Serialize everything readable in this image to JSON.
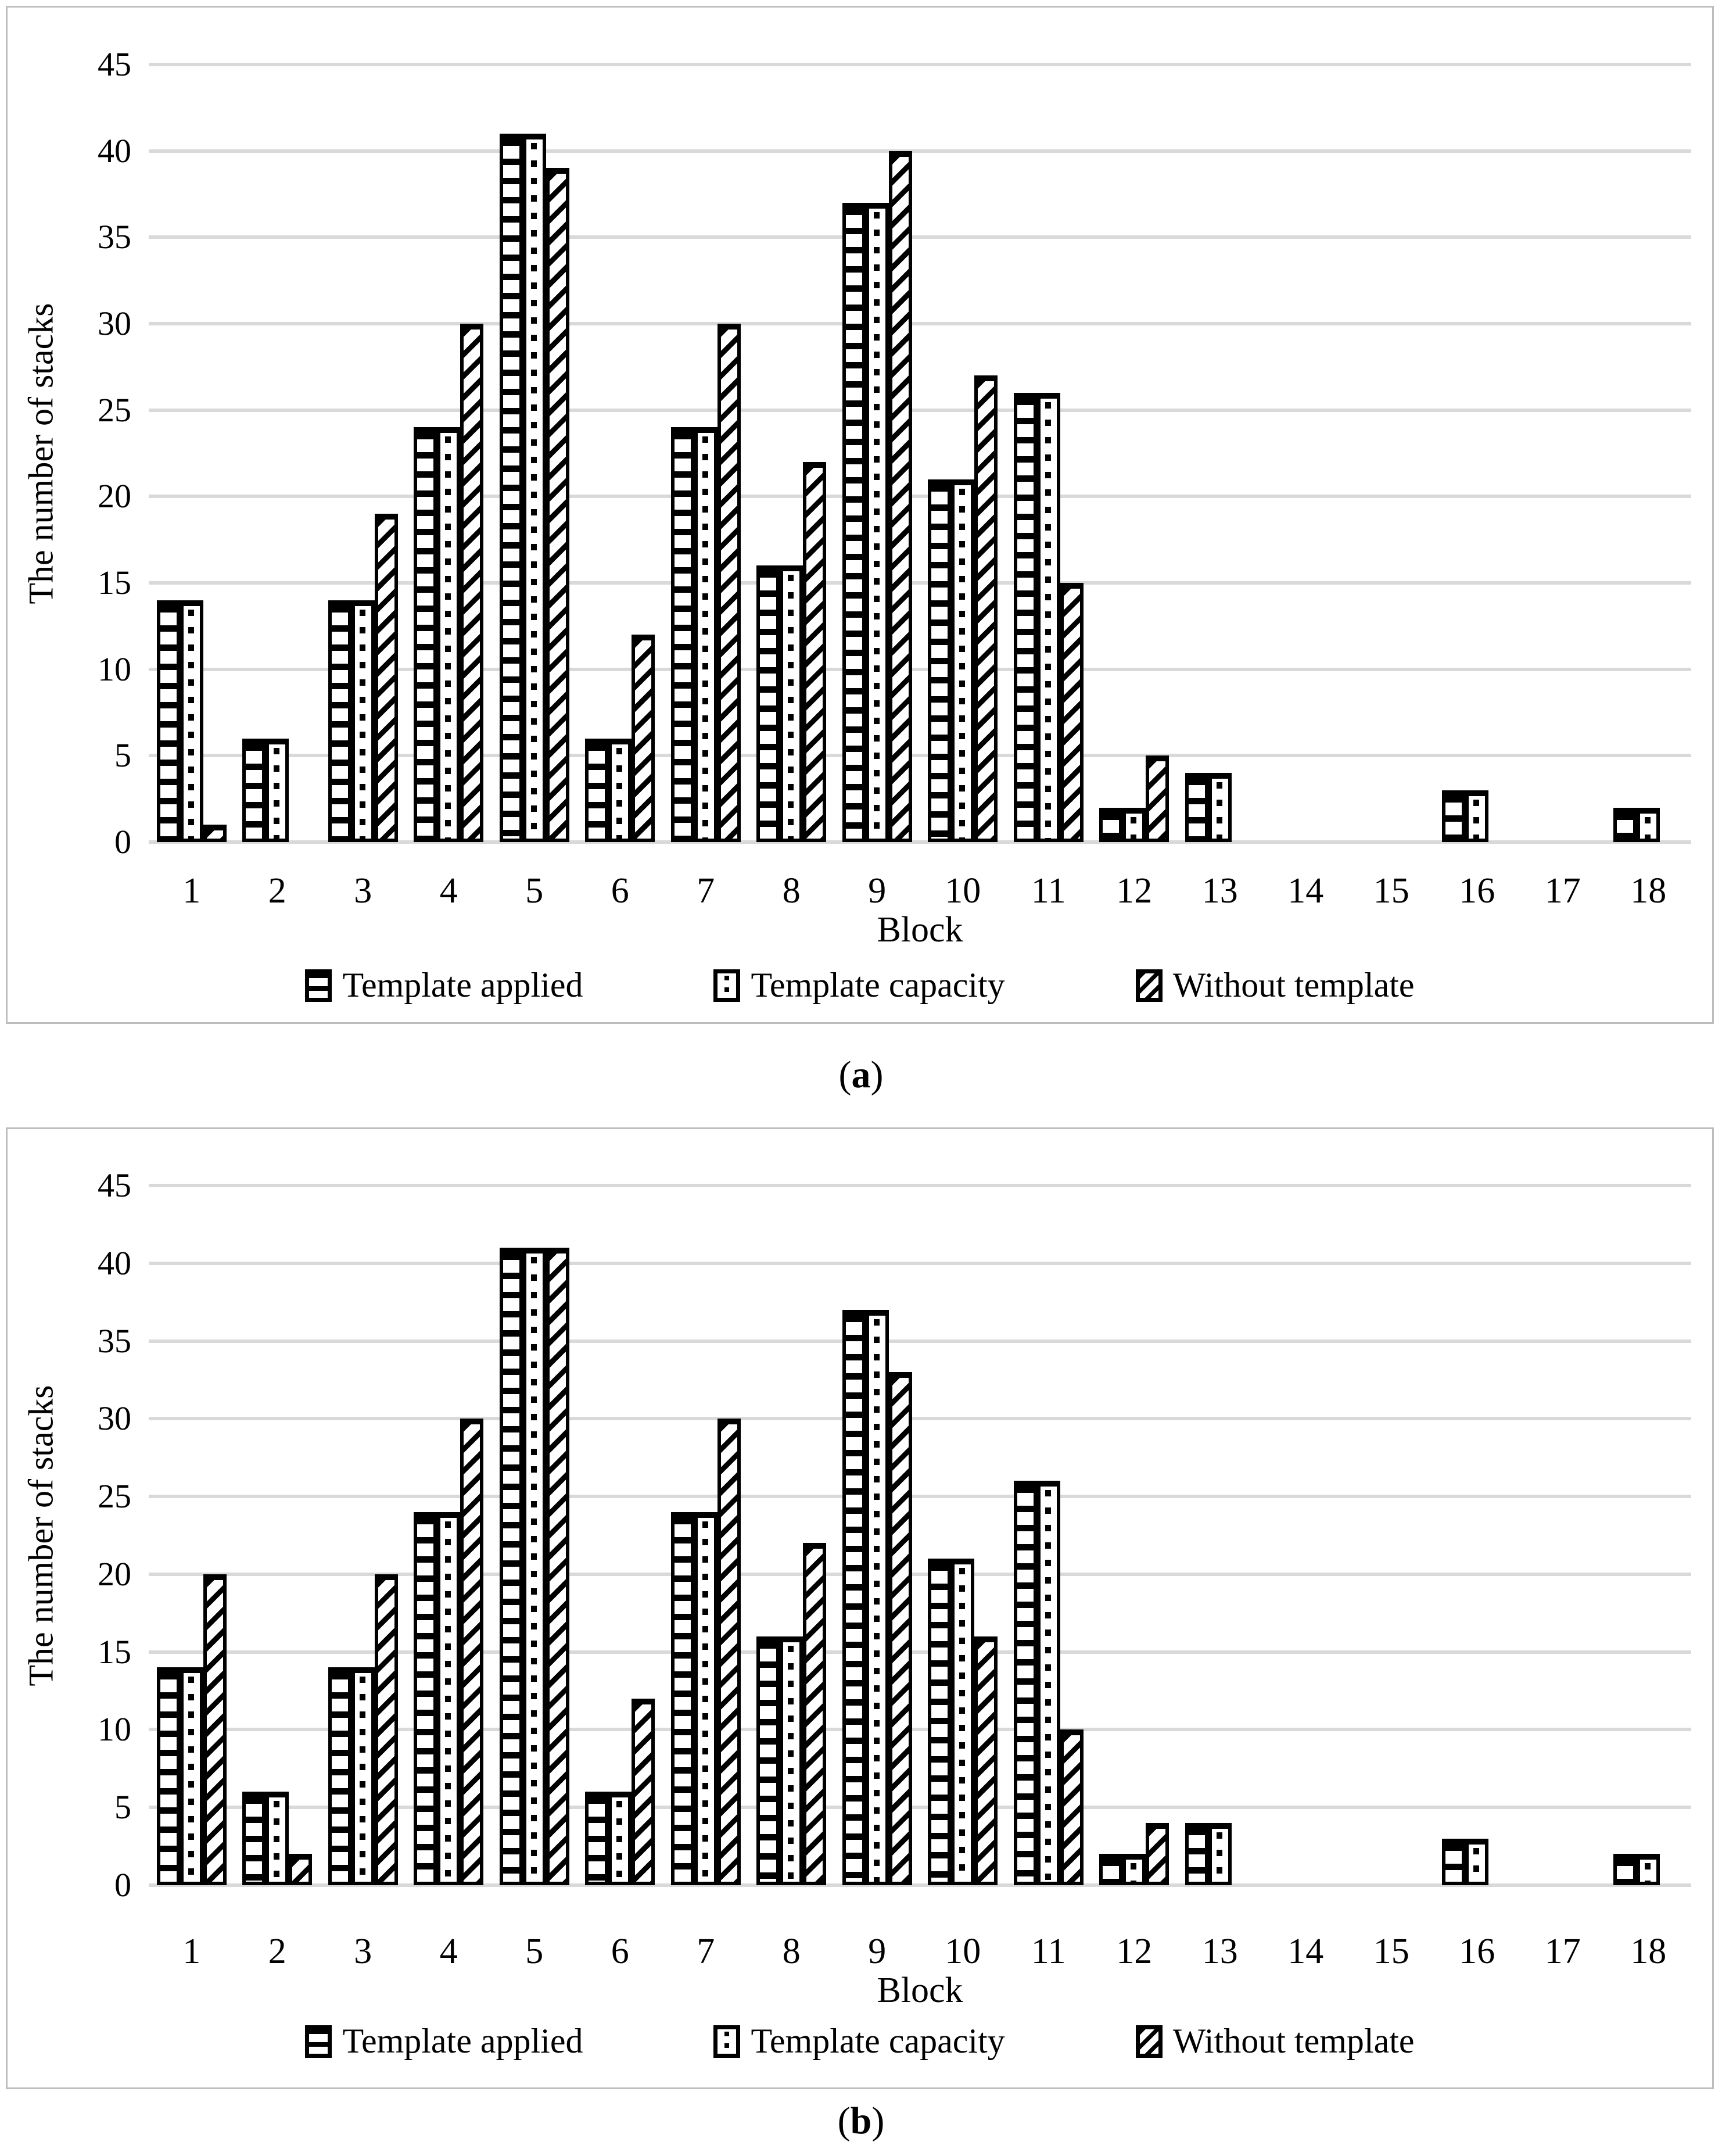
{
  "figure": {
    "background": "#ffffff",
    "panel_border_color": "#bdbdbd",
    "gridline_color": "#d9d9d9",
    "bar_color": "#000000"
  },
  "chart_data": [
    {
      "type": "bar",
      "title": "",
      "xlabel": "Block",
      "ylabel": "The number of stacks",
      "ylim": [
        0,
        45
      ],
      "ytick_step": 5,
      "grid": true,
      "legend_position": "bottom",
      "categories": [
        "1",
        "2",
        "3",
        "4",
        "5",
        "6",
        "7",
        "8",
        "9",
        "10",
        "11",
        "12",
        "13",
        "14",
        "15",
        "16",
        "17",
        "18"
      ],
      "series": [
        {
          "name": "Template applied",
          "pattern": "horizontal-lines",
          "values": [
            14,
            6,
            14,
            24,
            41,
            6,
            24,
            16,
            37,
            21,
            26,
            2,
            4,
            0,
            0,
            3,
            0,
            2
          ]
        },
        {
          "name": "Template capacity",
          "pattern": "dots",
          "values": [
            14,
            6,
            14,
            24,
            41,
            6,
            24,
            16,
            37,
            21,
            26,
            2,
            4,
            0,
            0,
            3,
            0,
            2
          ]
        },
        {
          "name": "Without template",
          "pattern": "diagonal-hatch",
          "values": [
            1,
            0,
            19,
            30,
            39,
            12,
            30,
            22,
            40,
            27,
            15,
            5,
            0,
            0,
            0,
            0,
            0,
            0
          ]
        }
      ],
      "caption_open": "(",
      "caption_letter": "a",
      "caption_close": ")"
    },
    {
      "type": "bar",
      "title": "",
      "xlabel": "Block",
      "ylabel": "The number of stacks",
      "ylim": [
        0,
        45
      ],
      "ytick_step": 5,
      "grid": true,
      "legend_position": "bottom",
      "categories": [
        "1",
        "2",
        "3",
        "4",
        "5",
        "6",
        "7",
        "8",
        "9",
        "10",
        "11",
        "12",
        "13",
        "14",
        "15",
        "16",
        "17",
        "18"
      ],
      "series": [
        {
          "name": "Template applied",
          "pattern": "horizontal-lines",
          "values": [
            14,
            6,
            14,
            24,
            41,
            6,
            24,
            16,
            37,
            21,
            26,
            2,
            4,
            0,
            0,
            3,
            0,
            2
          ]
        },
        {
          "name": "Template capacity",
          "pattern": "dots",
          "values": [
            14,
            6,
            14,
            24,
            41,
            6,
            24,
            16,
            37,
            21,
            26,
            2,
            4,
            0,
            0,
            3,
            0,
            2
          ]
        },
        {
          "name": "Without template",
          "pattern": "diagonal-hatch",
          "values": [
            20,
            2,
            20,
            30,
            41,
            12,
            30,
            22,
            33,
            16,
            10,
            4,
            0,
            0,
            0,
            0,
            0,
            0
          ]
        }
      ],
      "caption_open": "(",
      "caption_letter": "b",
      "caption_close": ")"
    }
  ]
}
